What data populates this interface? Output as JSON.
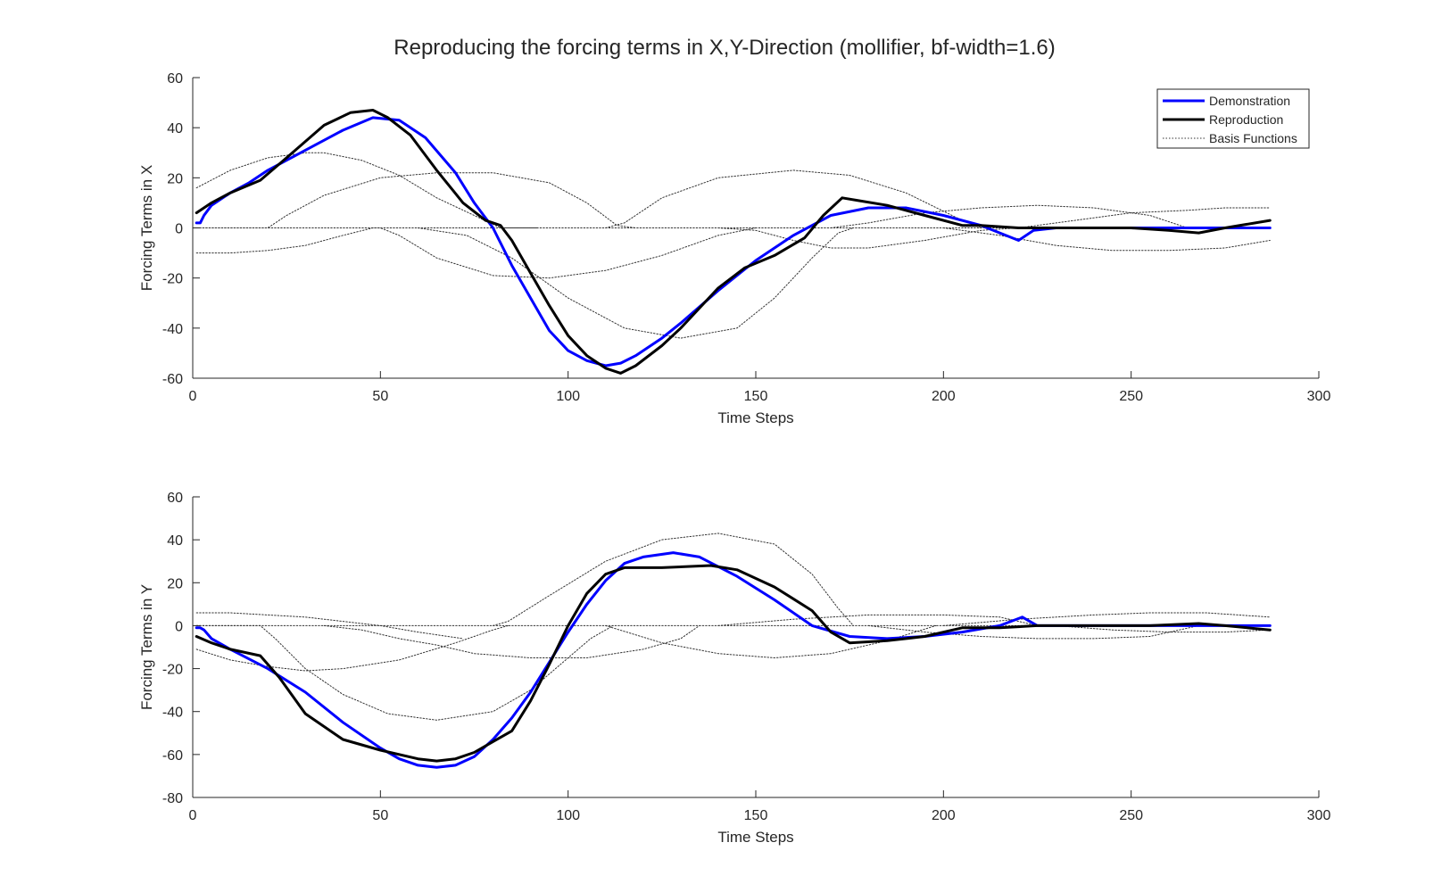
{
  "figure": {
    "title": "Reproducing the forcing terms in X,Y-Direction (mollifier, bf-width=1.6)"
  },
  "legend": {
    "demonstration": "Demonstration",
    "reproduction": "Reproduction",
    "basis": "Basis Functions"
  },
  "colors": {
    "demonstration": "#0000ff",
    "reproduction": "#000000",
    "basis": "#333333",
    "axis": "#262626"
  },
  "chart_data": [
    {
      "type": "line",
      "xlabel": "Time Steps",
      "ylabel": "Forcing Terms in X",
      "xlim": [
        0,
        300
      ],
      "ylim": [
        -60,
        60
      ],
      "xticks": [
        0,
        50,
        100,
        150,
        200,
        250,
        300
      ],
      "yticks": [
        -60,
        -40,
        -20,
        0,
        20,
        40,
        60
      ],
      "legend_position": "top-right",
      "grid": false,
      "series": [
        {
          "name": "Demonstration",
          "style": "solid",
          "color": "#0000ff",
          "x": [
            1,
            2,
            3,
            5,
            10,
            15,
            20,
            30,
            40,
            48,
            55,
            62,
            70,
            75,
            80,
            85,
            90,
            95,
            100,
            105,
            110,
            114,
            118,
            125,
            130,
            140,
            150,
            160,
            170,
            180,
            190,
            200,
            210,
            215,
            220,
            224,
            230,
            240,
            250,
            260,
            270,
            287
          ],
          "values": [
            2,
            2,
            5,
            9,
            14,
            18,
            23,
            31,
            39,
            44,
            43,
            36,
            22,
            10,
            0,
            -15,
            -28,
            -41,
            -49,
            -53,
            -55,
            -54,
            -51,
            -44,
            -38,
            -25,
            -13,
            -3,
            5,
            8,
            8,
            5,
            1,
            -2,
            -5,
            -1,
            0,
            0,
            0,
            0,
            0,
            0
          ]
        },
        {
          "name": "Reproduction",
          "style": "solid",
          "color": "#000000",
          "x": [
            1,
            5,
            10,
            18,
            25,
            35,
            42,
            48,
            52,
            58,
            65,
            72,
            78,
            82,
            85,
            90,
            95,
            100,
            105,
            110,
            114,
            118,
            125,
            130,
            140,
            147,
            155,
            163,
            168,
            173,
            177,
            185,
            195,
            205,
            210,
            220,
            230,
            240,
            250,
            260,
            268,
            275,
            287
          ],
          "values": [
            6,
            10,
            14,
            19,
            28,
            41,
            46,
            47,
            44,
            37,
            23,
            10,
            3,
            1,
            -5,
            -18,
            -31,
            -43,
            -51,
            -56,
            -58,
            -55,
            -47,
            -40,
            -24,
            -16,
            -11,
            -4,
            5,
            12,
            11,
            9,
            5,
            1,
            1,
            0,
            0,
            0,
            0,
            -1,
            -2,
            0,
            3
          ]
        },
        {
          "name": "Basis Functions",
          "style": "dotted",
          "color": "#333333",
          "x": [
            1,
            10,
            20,
            30,
            35,
            45,
            55,
            65,
            75,
            82,
            92
          ],
          "values": [
            16,
            23,
            28,
            30,
            30,
            27,
            21,
            12,
            5,
            0,
            0
          ]
        },
        {
          "name": "Basis Functions",
          "style": "dotted",
          "color": "#333333",
          "x": [
            1,
            20,
            25,
            35,
            50,
            65,
            80,
            95,
            105,
            113,
            118
          ],
          "values": [
            0,
            0,
            5,
            13,
            20,
            22,
            22,
            18,
            10,
            1,
            0
          ]
        },
        {
          "name": "Basis Functions",
          "style": "dotted",
          "color": "#333333",
          "x": [
            1,
            10,
            20,
            30,
            40,
            48,
            50,
            55,
            65,
            80,
            95,
            110,
            125,
            140,
            150
          ],
          "values": [
            -10,
            -10,
            -9,
            -7,
            -3,
            0,
            0,
            -3,
            -12,
            -19,
            -20,
            -17,
            -11,
            -3,
            0
          ]
        },
        {
          "name": "Basis Functions",
          "style": "dotted",
          "color": "#333333",
          "x": [
            60,
            73,
            85,
            100,
            115,
            130,
            145,
            155,
            165,
            172,
            176
          ],
          "values": [
            0,
            -3,
            -12,
            -28,
            -40,
            -44,
            -40,
            -28,
            -12,
            -2,
            0
          ]
        },
        {
          "name": "Basis Functions",
          "style": "dotted",
          "color": "#333333",
          "x": [
            110,
            115,
            125,
            140,
            160,
            175,
            190,
            205,
            210
          ],
          "values": [
            0,
            2,
            12,
            20,
            23,
            21,
            14,
            3,
            0
          ]
        },
        {
          "name": "Basis Functions",
          "style": "dotted",
          "color": "#333333",
          "x": [
            140,
            150,
            160,
            170,
            180,
            195,
            210,
            220
          ],
          "values": [
            0,
            -1,
            -5,
            -8,
            -8,
            -5,
            -1,
            0
          ]
        },
        {
          "name": "Basis Functions",
          "style": "dotted",
          "color": "#333333",
          "x": [
            170,
            180,
            195,
            210,
            225,
            240,
            255,
            265
          ],
          "values": [
            0,
            2,
            6,
            8,
            9,
            8,
            5,
            0
          ]
        },
        {
          "name": "Basis Functions",
          "style": "dotted",
          "color": "#333333",
          "x": [
            200,
            215,
            230,
            245,
            260,
            275,
            287
          ],
          "values": [
            0,
            -3,
            -7,
            -9,
            -9,
            -8,
            -5
          ]
        },
        {
          "name": "Basis Functions",
          "style": "dotted",
          "color": "#333333",
          "x": [
            220,
            235,
            250,
            265,
            275,
            287
          ],
          "values": [
            0,
            3,
            6,
            7,
            8,
            8
          ]
        },
        {
          "name": "Basis Functions",
          "style": "dotted",
          "color": "#333333",
          "x": [
            1,
            287
          ],
          "values": [
            0,
            0
          ]
        }
      ]
    },
    {
      "type": "line",
      "xlabel": "Time Steps",
      "ylabel": "Forcing Terms in Y",
      "xlim": [
        0,
        300
      ],
      "ylim": [
        -80,
        60
      ],
      "xticks": [
        0,
        50,
        100,
        150,
        200,
        250,
        300
      ],
      "yticks": [
        -80,
        -60,
        -40,
        -20,
        0,
        20,
        40,
        60
      ],
      "grid": false,
      "series": [
        {
          "name": "Demonstration",
          "style": "solid",
          "color": "#0000ff",
          "x": [
            1,
            2,
            3,
            5,
            10,
            20,
            30,
            40,
            50,
            55,
            60,
            65,
            70,
            75,
            80,
            85,
            90,
            95,
            100,
            105,
            110,
            115,
            120,
            128,
            135,
            145,
            155,
            165,
            175,
            185,
            195,
            205,
            215,
            221,
            225,
            235,
            250,
            270,
            287
          ],
          "values": [
            -1,
            -1,
            -2,
            -6,
            -11,
            -20,
            -31,
            -45,
            -57,
            -62,
            -65,
            -66,
            -65,
            -61,
            -53,
            -43,
            -31,
            -17,
            -3,
            10,
            21,
            29,
            32,
            34,
            32,
            23,
            12,
            0,
            -5,
            -6,
            -5,
            -3,
            0,
            4,
            0,
            0,
            0,
            0,
            0
          ]
        },
        {
          "name": "Reproduction",
          "style": "solid",
          "color": "#000000",
          "x": [
            1,
            5,
            10,
            18,
            23,
            30,
            40,
            50,
            60,
            65,
            70,
            75,
            80,
            85,
            90,
            95,
            100,
            105,
            110,
            115,
            125,
            138,
            145,
            155,
            165,
            170,
            175,
            185,
            195,
            205,
            215,
            225,
            235,
            245,
            255,
            268,
            275,
            287
          ],
          "values": [
            -5,
            -8,
            -11,
            -14,
            -24,
            -41,
            -53,
            -58,
            -62,
            -63,
            -62,
            -59,
            -54,
            -49,
            -35,
            -18,
            0,
            15,
            24,
            27,
            27,
            28,
            26,
            18,
            7,
            -3,
            -8,
            -7,
            -5,
            -1,
            -1,
            0,
            0,
            0,
            0,
            1,
            0,
            -2
          ]
        },
        {
          "name": "Basis Functions",
          "style": "dotted",
          "color": "#333333",
          "x": [
            1,
            10,
            20,
            30,
            40,
            50,
            60,
            68,
            72
          ],
          "values": [
            6,
            6,
            5,
            4,
            2,
            0,
            -3,
            -5,
            -6
          ]
        },
        {
          "name": "Basis Functions",
          "style": "dotted",
          "color": "#333333",
          "x": [
            1,
            10,
            20,
            30,
            40,
            55,
            70,
            80,
            84
          ],
          "values": [
            -11,
            -16,
            -19,
            -21,
            -20,
            -16,
            -8,
            -2,
            0
          ]
        },
        {
          "name": "Basis Functions",
          "style": "dotted",
          "color": "#333333",
          "x": [
            1,
            18,
            22,
            30,
            40,
            52,
            65,
            80,
            90,
            100,
            106,
            112
          ],
          "values": [
            0,
            0,
            -6,
            -20,
            -32,
            -41,
            -44,
            -40,
            -30,
            -15,
            -6,
            0
          ]
        },
        {
          "name": "Basis Functions",
          "style": "dotted",
          "color": "#333333",
          "x": [
            35,
            45,
            55,
            65,
            75,
            90,
            105,
            120,
            130,
            135
          ],
          "values": [
            0,
            -2,
            -6,
            -9,
            -13,
            -15,
            -15,
            -11,
            -6,
            0
          ]
        },
        {
          "name": "Basis Functions",
          "style": "dotted",
          "color": "#333333",
          "x": [
            80,
            84,
            95,
            110,
            125,
            140,
            155,
            165,
            172,
            176
          ],
          "values": [
            0,
            2,
            14,
            30,
            40,
            43,
            38,
            24,
            8,
            0
          ]
        },
        {
          "name": "Basis Functions",
          "style": "dotted",
          "color": "#333333",
          "x": [
            110,
            125,
            140,
            155,
            170,
            185,
            198
          ],
          "values": [
            0,
            -8,
            -13,
            -15,
            -13,
            -7,
            0
          ]
        },
        {
          "name": "Basis Functions",
          "style": "dotted",
          "color": "#333333",
          "x": [
            140,
            160,
            180,
            200,
            215,
            225
          ],
          "values": [
            0,
            3,
            5,
            5,
            4,
            0
          ]
        },
        {
          "name": "Basis Functions",
          "style": "dotted",
          "color": "#333333",
          "x": [
            180,
            195,
            210,
            225,
            240,
            255,
            268
          ],
          "values": [
            0,
            -3,
            -5,
            -6,
            -6,
            -5,
            0
          ]
        },
        {
          "name": "Basis Functions",
          "style": "dotted",
          "color": "#333333",
          "x": [
            200,
            220,
            240,
            255,
            270,
            287
          ],
          "values": [
            0,
            3,
            5,
            6,
            6,
            4
          ]
        },
        {
          "name": "Basis Functions",
          "style": "dotted",
          "color": "#333333",
          "x": [
            230,
            245,
            260,
            275,
            287
          ],
          "values": [
            0,
            -2,
            -3,
            -3,
            -2
          ]
        },
        {
          "name": "Basis Functions",
          "style": "dotted",
          "color": "#333333",
          "x": [
            1,
            287
          ],
          "values": [
            0,
            0
          ]
        }
      ]
    }
  ]
}
